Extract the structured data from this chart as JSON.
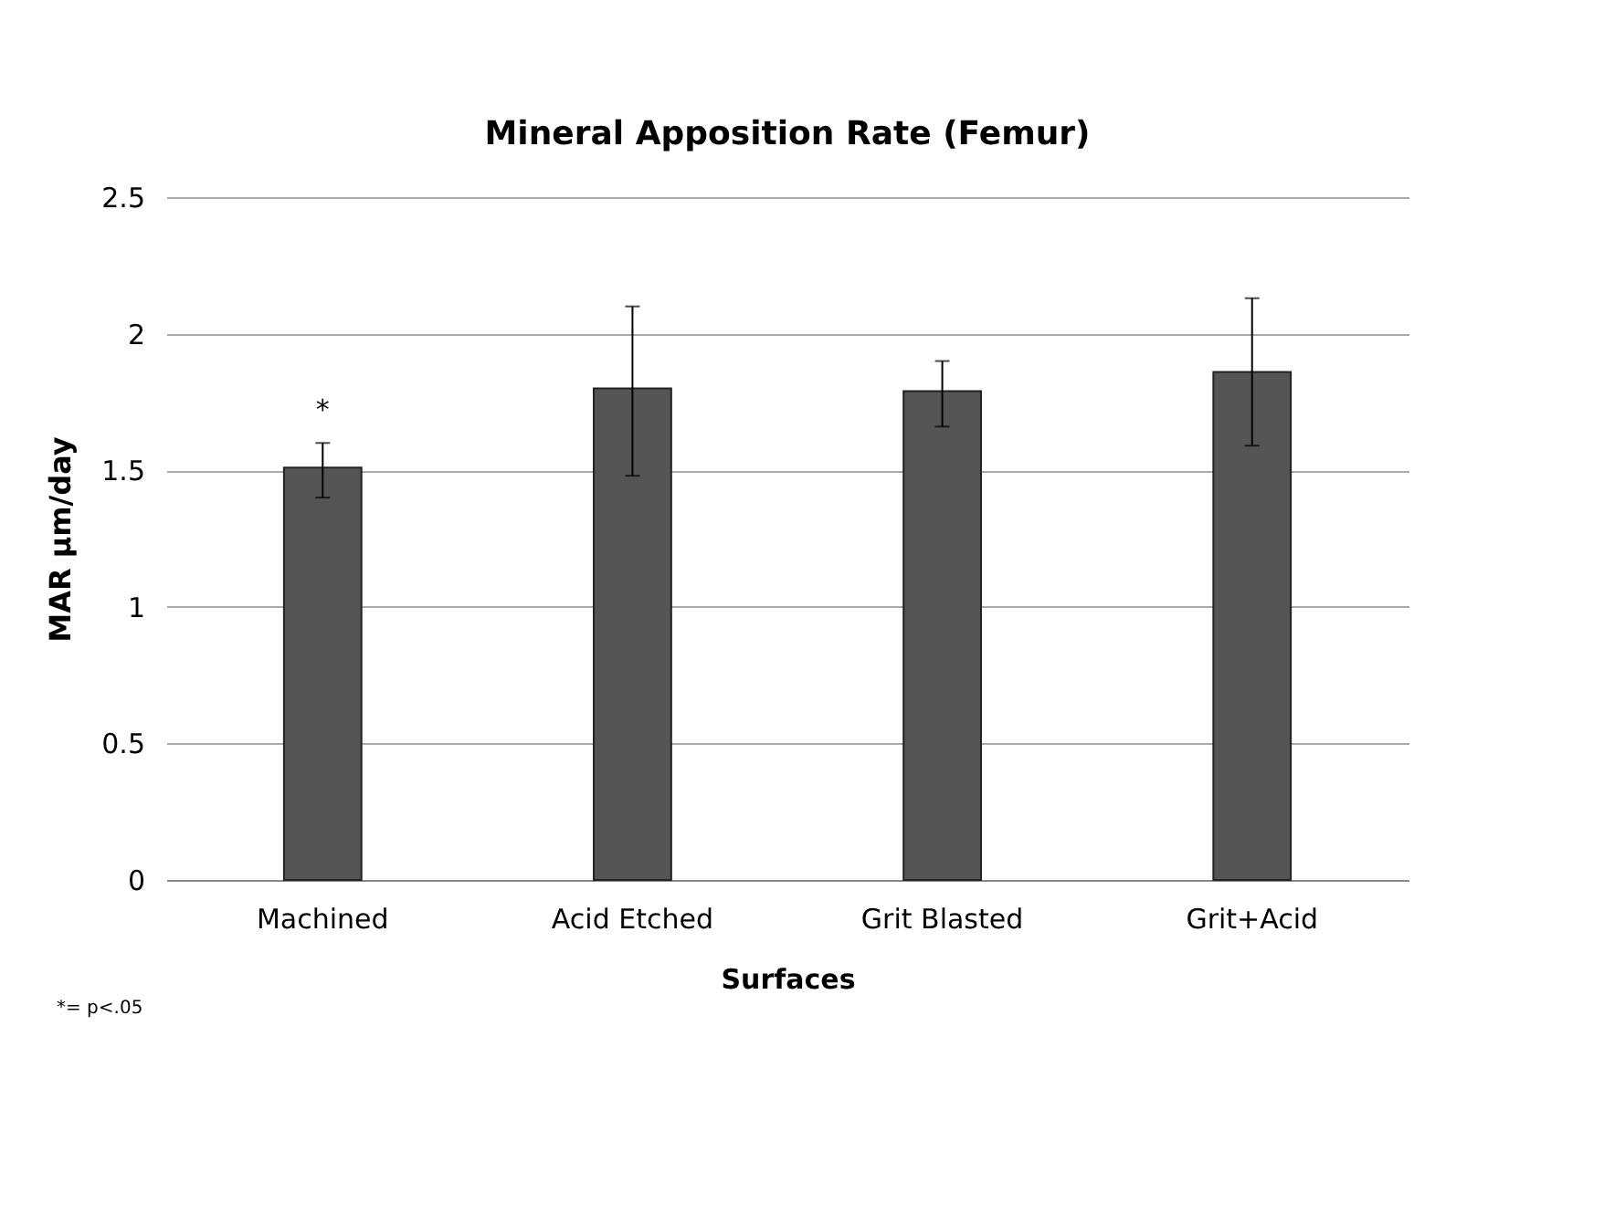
{
  "chart_data": {
    "type": "bar",
    "title": "Mineral Apposition Rate (Femur)",
    "xlabel": "Surfaces",
    "ylabel": "MAR µm/day",
    "categories": [
      "Machined",
      "Acid Etched",
      "Grit Blasted",
      "Grit+Acid"
    ],
    "values": [
      1.51,
      1.8,
      1.79,
      1.86
    ],
    "color": "#555555",
    "errors": [
      [
        1.4,
        1.6
      ],
      [
        1.48,
        2.1
      ],
      [
        1.66,
        1.9
      ],
      [
        1.59,
        2.13
      ]
    ],
    "ylim": [
      0,
      2.5
    ],
    "yticks": [
      0,
      0.5,
      1,
      1.5,
      2,
      2.5
    ],
    "grid": "y",
    "annotations": [
      "*",
      "*= p<.05"
    ]
  }
}
